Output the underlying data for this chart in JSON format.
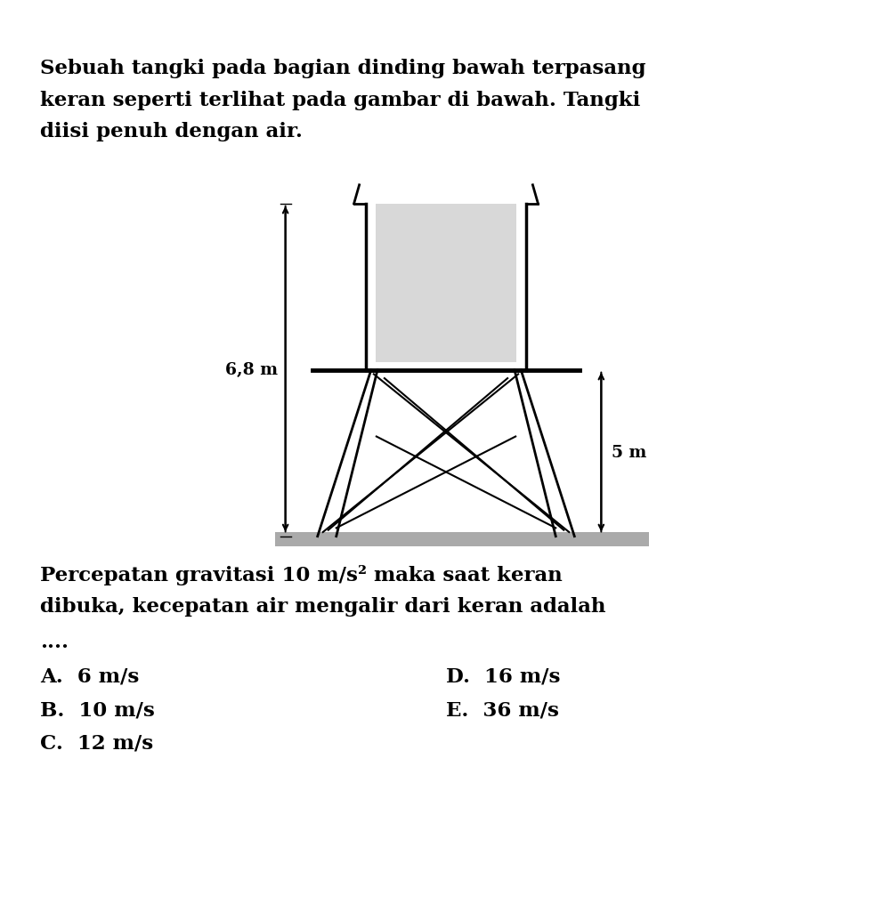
{
  "title_line1": "Sebuah tangki pada bagian dinding bawah terpasang",
  "title_line2": "keran seperti terlihat pada gambar di bawah. Tangki",
  "title_line3": "diisi penuh dengan air.",
  "body_line1": "Percepatan gravitasi 10 m/s² maka saat keran",
  "body_line2": "dibuka, kecepatan air mengalir dari keran adalah",
  "body_line3": "....",
  "opt_A": "A.  6 m/s",
  "opt_B": "B.  10 m/s",
  "opt_C": "C.  12 m/s",
  "opt_D": "D.  16 m/s",
  "opt_E": "E.  36 m/s",
  "label_68m": "6,8 m",
  "label_5m": "5 m",
  "bg_color": "#ffffff",
  "text_color": "#000000",
  "tank_fill_color": "#d8d8d8",
  "line_color": "#000000",
  "ground_color": "#aaaaaa"
}
